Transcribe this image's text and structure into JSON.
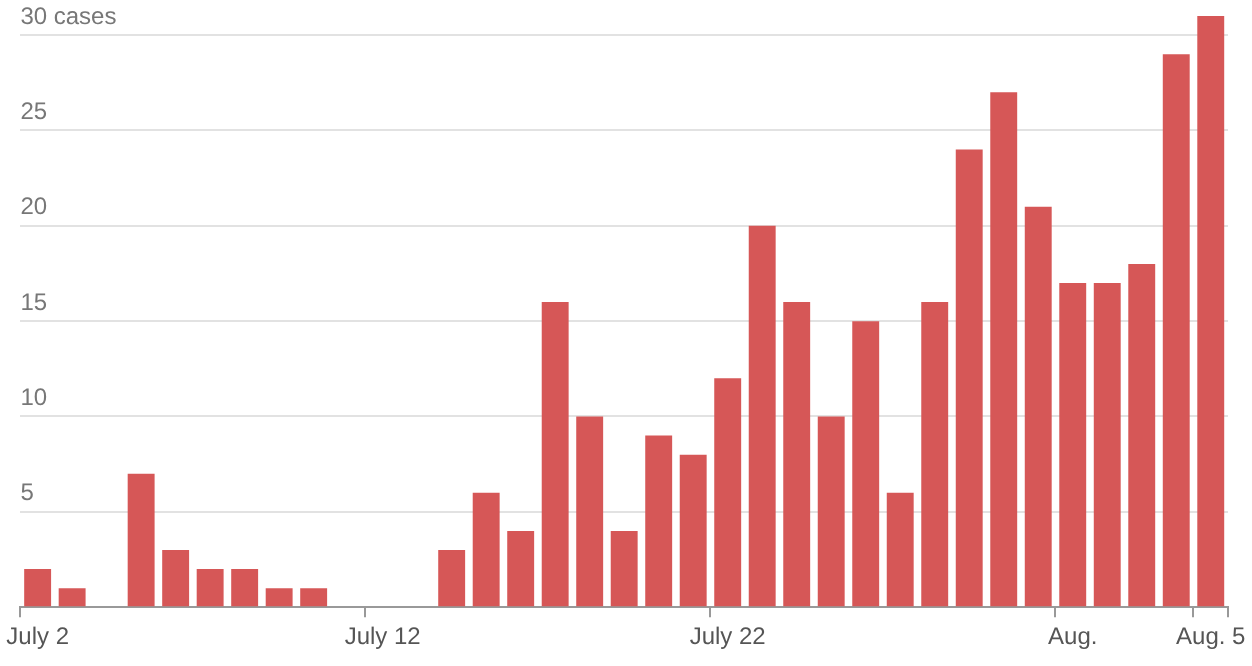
{
  "chart_data": {
    "type": "bar",
    "categories": [
      "July 2",
      null,
      null,
      null,
      null,
      null,
      null,
      null,
      null,
      null,
      "July 12",
      null,
      null,
      null,
      null,
      null,
      null,
      null,
      null,
      null,
      "July 22",
      null,
      null,
      null,
      null,
      null,
      null,
      null,
      null,
      null,
      "Aug.",
      null,
      null,
      null,
      "Aug. 5"
    ],
    "values": [
      2,
      1,
      0,
      7,
      3,
      2,
      2,
      1,
      1,
      0,
      0,
      0,
      3,
      6,
      4,
      16,
      10,
      4,
      9,
      8,
      12,
      20,
      16,
      10,
      15,
      6,
      16,
      24,
      27,
      21,
      17,
      17,
      18,
      29,
      31
    ],
    "color": "#d65757",
    "ylim": [
      0,
      31
    ],
    "yticks": [
      {
        "value": 0,
        "label": null
      },
      5,
      10,
      15,
      20,
      25,
      {
        "value": 30,
        "label": "30 cases"
      }
    ],
    "grid": "y",
    "legend": false
  }
}
